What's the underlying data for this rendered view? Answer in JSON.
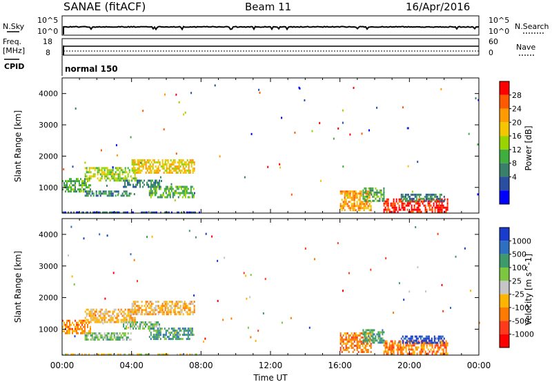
{
  "header": {
    "station": "SANAE (fitACF)",
    "beam": "Beam 11",
    "date": "16/Apr/2016"
  },
  "strip_panels": {
    "nsky_label": "N.Sky",
    "nsky_ticks": [
      "10^5",
      "10^0"
    ],
    "nsearch_label": "N.Search",
    "nsearch_ticks": [
      "10^5",
      "10^0"
    ],
    "freq_label": "Freq.",
    "freq_unit": "[MHz]",
    "freq_ticks": [
      "18",
      "8"
    ],
    "nave_label": "Nave",
    "nave_ticks": [
      "60",
      "0"
    ],
    "cpid_label": "CPID",
    "cpid_value": "normal 150"
  },
  "chart_data": [
    {
      "type": "heatmap",
      "name": "power",
      "ylabel": "Slant Range [km]",
      "xlabel": "Time UT",
      "xlim": [
        0,
        24
      ],
      "ylim": [
        180,
        4500
      ],
      "x_ticks": [
        "00:00",
        "04:00",
        "08:00",
        "12:00",
        "16:00",
        "20:00",
        "00:00"
      ],
      "y_ticks": [
        "1000",
        "2000",
        "3000",
        "4000"
      ],
      "colorbar": {
        "label": "Power [dB]",
        "ticks": [
          "28",
          "24",
          "20",
          "16",
          "12",
          "8",
          "4"
        ],
        "colors": [
          "#ff0000",
          "#ff5a00",
          "#ff9a00",
          "#f4c600",
          "#9ad400",
          "#3fae3f",
          "#3a7f6a",
          "#2a4fa0",
          "#0000ff"
        ]
      },
      "regions": [
        {
          "x": [
            0.0,
            1.6
          ],
          "y": [
            850,
            1300
          ],
          "level": 5
        },
        {
          "x": [
            1.3,
            4.3
          ],
          "y": [
            1250,
            1650
          ],
          "level": 4
        },
        {
          "x": [
            4.0,
            7.6
          ],
          "y": [
            1450,
            1900
          ],
          "level": 3
        },
        {
          "x": [
            1.3,
            4.0
          ],
          "y": [
            750,
            900
          ],
          "level": 6
        },
        {
          "x": [
            3.5,
            5.6
          ],
          "y": [
            1000,
            1250
          ],
          "level": 6
        },
        {
          "x": [
            5.0,
            7.6
          ],
          "y": [
            700,
            1050
          ],
          "level": 5
        },
        {
          "x": [
            16.0,
            17.8
          ],
          "y": [
            300,
            900
          ],
          "level": 2
        },
        {
          "x": [
            17.3,
            18.5
          ],
          "y": [
            600,
            1000
          ],
          "level": 5
        },
        {
          "x": [
            18.5,
            22.2
          ],
          "y": [
            200,
            650
          ],
          "level": 0
        },
        {
          "x": [
            19.5,
            22.0
          ],
          "y": [
            600,
            800
          ],
          "level": 6
        },
        {
          "x": [
            0.0,
            8.0
          ],
          "y": [
            190,
            230
          ],
          "level": 7
        }
      ]
    },
    {
      "type": "heatmap",
      "name": "velocity",
      "ylabel": "Slant Range [km]",
      "xlabel": "Time UT",
      "xlim": [
        0,
        24
      ],
      "ylim": [
        180,
        4500
      ],
      "x_ticks": [
        "00:00",
        "04:00",
        "08:00",
        "12:00",
        "16:00",
        "20:00",
        "00:00"
      ],
      "y_ticks": [
        "1000",
        "2000",
        "3000",
        "4000"
      ],
      "colorbar": {
        "label": "Velocity [m s^-1]",
        "ticks": [
          "1000",
          "500",
          "100",
          "25",
          "-25",
          "-100",
          "-500",
          "-1000"
        ],
        "colors": [
          "#1a3ccc",
          "#2e6fbf",
          "#3e9a6a",
          "#7dc63f",
          "#c6c6c6",
          "#ffb400",
          "#ff7a00",
          "#ff3a1a",
          "#ff0000"
        ]
      },
      "regions": [
        {
          "x": [
            0.0,
            1.6
          ],
          "y": [
            850,
            1300
          ],
          "level": 6
        },
        {
          "x": [
            1.3,
            4.3
          ],
          "y": [
            1250,
            1650
          ],
          "level": 5
        },
        {
          "x": [
            4.0,
            7.6
          ],
          "y": [
            1450,
            1900
          ],
          "level": 5
        },
        {
          "x": [
            1.3,
            4.0
          ],
          "y": [
            700,
            900
          ],
          "level": 3
        },
        {
          "x": [
            3.5,
            5.6
          ],
          "y": [
            1000,
            1250
          ],
          "level": 3
        },
        {
          "x": [
            5.0,
            7.6
          ],
          "y": [
            700,
            1050
          ],
          "level": 2
        },
        {
          "x": [
            16.0,
            17.8
          ],
          "y": [
            300,
            900
          ],
          "level": 6
        },
        {
          "x": [
            17.3,
            18.5
          ],
          "y": [
            600,
            1000
          ],
          "level": 2
        },
        {
          "x": [
            18.5,
            22.2
          ],
          "y": [
            200,
            650
          ],
          "level": 6
        },
        {
          "x": [
            19.5,
            22.0
          ],
          "y": [
            600,
            800
          ],
          "level": 0
        },
        {
          "x": [
            0.0,
            8.0
          ],
          "y": [
            190,
            230
          ],
          "level": 4
        }
      ]
    }
  ]
}
